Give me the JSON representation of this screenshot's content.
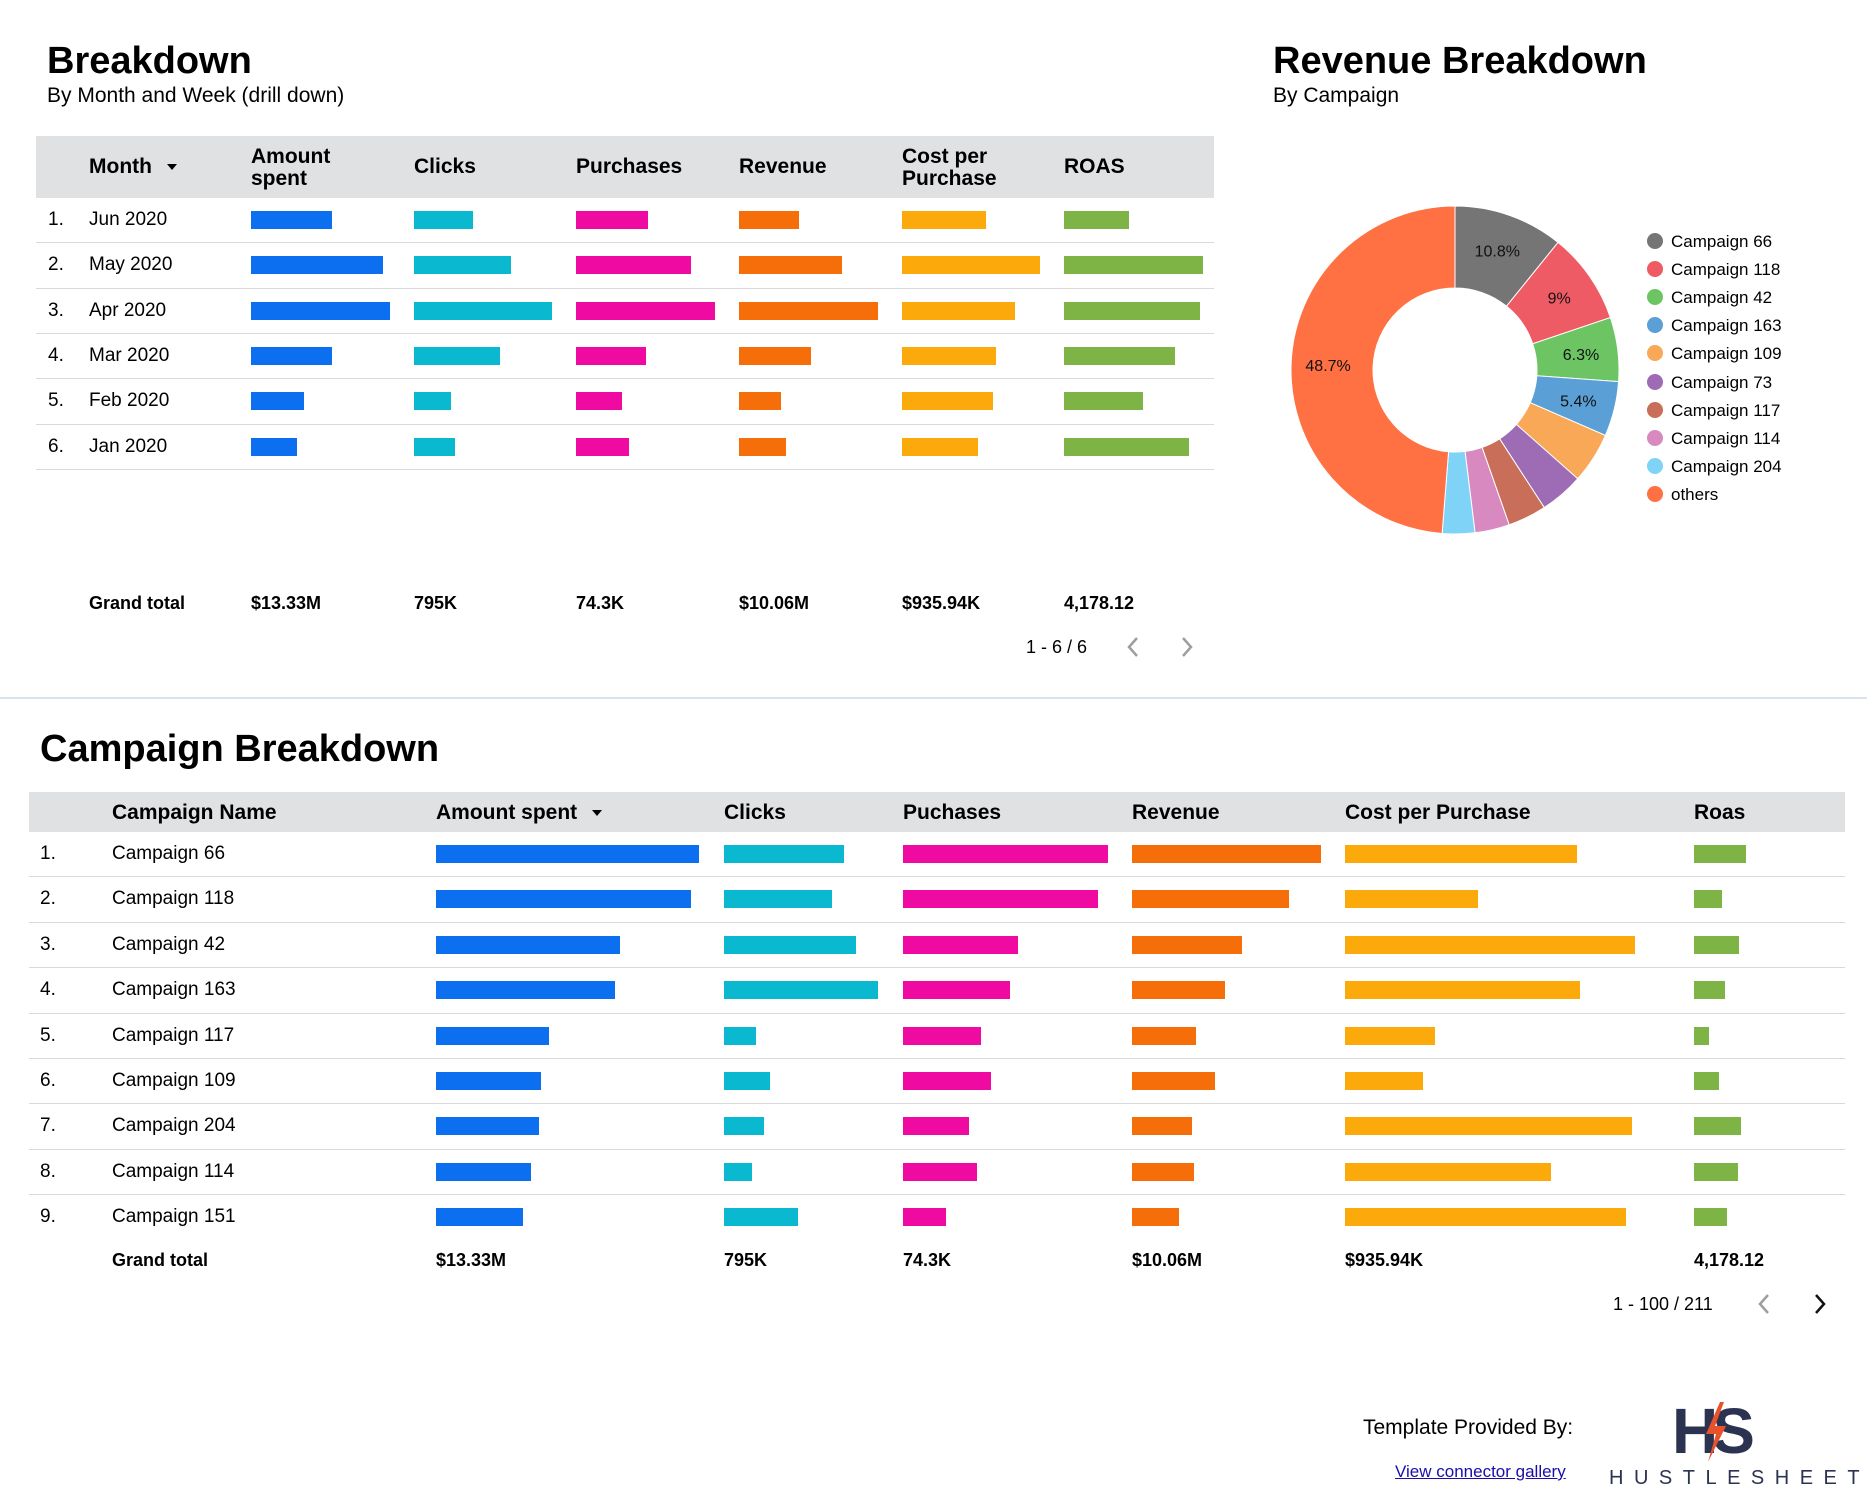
{
  "colors": {
    "amount": "#0b6ff0",
    "clicks": "#0ab8cf",
    "purchases": "#ef0aa2",
    "revenue": "#f66e0a",
    "cpp": "#fca90b",
    "roas": "#7db445"
  },
  "breakdown": {
    "title": "Breakdown",
    "subtitle": "By Month and Week (drill down)",
    "headers": {
      "month": "Month",
      "amount": "Amount spent",
      "clicks": "Clicks",
      "purchases": "Purchases",
      "revenue": "Revenue",
      "cpp": "Cost per Purchase",
      "roas": "ROAS"
    },
    "sort_icon": "sort-down-icon",
    "rows": [
      {
        "idx": "1.",
        "label": "Jun 2020",
        "amount": 0.58,
        "clicks": 0.43,
        "purchases": 0.52,
        "revenue": 0.43,
        "cpp": 0.61,
        "roas": 0.47
      },
      {
        "idx": "2.",
        "label": "May 2020",
        "amount": 0.95,
        "clicks": 0.7,
        "purchases": 0.83,
        "revenue": 0.74,
        "cpp": 1.0,
        "roas": 1.0
      },
      {
        "idx": "3.",
        "label": "Apr 2020",
        "amount": 1.0,
        "clicks": 1.0,
        "purchases": 1.0,
        "revenue": 1.0,
        "cpp": 0.82,
        "roas": 0.98
      },
      {
        "idx": "4.",
        "label": "Mar 2020",
        "amount": 0.58,
        "clicks": 0.62,
        "purchases": 0.5,
        "revenue": 0.52,
        "cpp": 0.68,
        "roas": 0.8
      },
      {
        "idx": "5.",
        "label": "Feb 2020",
        "amount": 0.38,
        "clicks": 0.27,
        "purchases": 0.33,
        "revenue": 0.3,
        "cpp": 0.66,
        "roas": 0.57
      },
      {
        "idx": "6.",
        "label": "Jan 2020",
        "amount": 0.33,
        "clicks": 0.3,
        "purchases": 0.38,
        "revenue": 0.34,
        "cpp": 0.55,
        "roas": 0.9
      }
    ],
    "totals": {
      "label": "Grand total",
      "amount": "$13.33M",
      "clicks": "795K",
      "purchases": "74.3K",
      "revenue": "$10.06M",
      "cpp": "$935.94K",
      "roas": "4,178.12"
    },
    "pager": "1 - 6 / 6"
  },
  "revenue": {
    "title": "Revenue Breakdown",
    "subtitle": "By Campaign",
    "chart_data": {
      "type": "pie",
      "categories": [
        "Campaign 66",
        "Campaign 118",
        "Campaign 42",
        "Campaign 163",
        "Campaign 109",
        "Campaign 73",
        "Campaign 117",
        "Campaign 114",
        "Campaign 204",
        "others"
      ],
      "values": [
        10.8,
        9,
        6.3,
        5.4,
        5.0,
        4.3,
        3.8,
        3.4,
        3.2,
        48.7
      ],
      "labels": [
        "10.8%",
        "9%",
        "6.3%",
        "5.4%",
        "",
        "",
        "",
        "",
        "",
        "48.7%"
      ],
      "colors": [
        "#757575",
        "#ef5b64",
        "#6cc463",
        "#5a9fd6",
        "#f9a857",
        "#9e6bb5",
        "#c96e58",
        "#d889c0",
        "#7ed3f7",
        "#ff7043"
      ],
      "legend": "right"
    }
  },
  "campaign": {
    "title": "Campaign Breakdown",
    "headers": {
      "name": "Campaign Name",
      "amount": "Amount spent",
      "clicks": "Clicks",
      "purchases": "Puchases",
      "revenue": "Revenue",
      "cpp": "Cost per Purchase",
      "roas": "Roas"
    },
    "rows": [
      {
        "idx": "1.",
        "label": "Campaign 66",
        "amount": 1.0,
        "clicks": 0.78,
        "purchases": 1.0,
        "revenue": 1.0,
        "cpp": 0.8,
        "roas": 1.0
      },
      {
        "idx": "2.",
        "label": "Campaign 118",
        "amount": 0.97,
        "clicks": 0.7,
        "purchases": 0.95,
        "revenue": 0.83,
        "cpp": 0.46,
        "roas": 0.53
      },
      {
        "idx": "3.",
        "label": "Campaign 42",
        "amount": 0.7,
        "clicks": 0.86,
        "purchases": 0.56,
        "revenue": 0.58,
        "cpp": 1.0,
        "roas": 0.86
      },
      {
        "idx": "4.",
        "label": "Campaign 163",
        "amount": 0.68,
        "clicks": 1.0,
        "purchases": 0.52,
        "revenue": 0.49,
        "cpp": 0.81,
        "roas": 0.6
      },
      {
        "idx": "5.",
        "label": "Campaign 117",
        "amount": 0.43,
        "clicks": 0.21,
        "purchases": 0.38,
        "revenue": 0.34,
        "cpp": 0.31,
        "roas": 0.28
      },
      {
        "idx": "6.",
        "label": "Campaign 109",
        "amount": 0.4,
        "clicks": 0.3,
        "purchases": 0.43,
        "revenue": 0.44,
        "cpp": 0.27,
        "roas": 0.49
      },
      {
        "idx": "7.",
        "label": "Campaign 204",
        "amount": 0.39,
        "clicks": 0.26,
        "purchases": 0.32,
        "revenue": 0.32,
        "cpp": 0.99,
        "roas": 0.91
      },
      {
        "idx": "8.",
        "label": "Campaign 114",
        "amount": 0.36,
        "clicks": 0.18,
        "purchases": 0.36,
        "revenue": 0.33,
        "cpp": 0.71,
        "roas": 0.84
      },
      {
        "idx": "9.",
        "label": "Campaign 151",
        "amount": 0.33,
        "clicks": 0.48,
        "purchases": 0.21,
        "revenue": 0.25,
        "cpp": 0.97,
        "roas": 0.63
      }
    ],
    "totals": {
      "label": "Grand total",
      "amount": "$13.33M",
      "clicks": "795K",
      "purchases": "74.3K",
      "revenue": "$10.06M",
      "cpp": "$935.94K",
      "roas": "4,178.12"
    },
    "pager": "1 - 100 / 211"
  },
  "footer": {
    "provided": "Template Provided By:",
    "link": "View connector gallery",
    "brand": "HUSTLESHEETS",
    "logo_text": "HS"
  }
}
